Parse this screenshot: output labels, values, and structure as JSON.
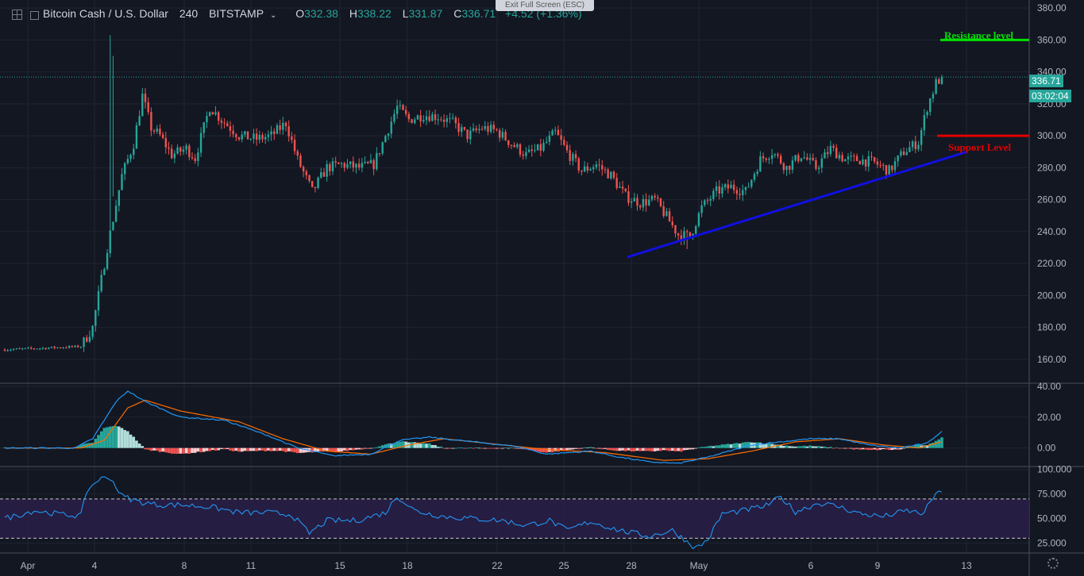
{
  "header": {
    "symbol": "Bitcoin Cash / U.S. Dollar",
    "interval": "240",
    "exchange": "BITSTAMP",
    "open_label": "O",
    "open": "332.38",
    "high_label": "H",
    "high": "338.22",
    "low_label": "L",
    "low": "331.87",
    "close_label": "C",
    "close": "336.71",
    "change": "+4.52 (+1.36%)"
  },
  "exit_fullscreen": "Exit Full Screen (ESC)",
  "price_tag": "336.71",
  "countdown": "03:02:04",
  "annotations": {
    "resistance": "Resistance level",
    "support": "Support Level"
  },
  "colors": {
    "background": "#131722",
    "up": "#26a69a",
    "down": "#ef5350",
    "resistance": "#00e000",
    "support": "#e00000",
    "trendline": "#1010e0",
    "macd": "#2196f3",
    "signal": "#ff6d00",
    "rsi": "#2196f3",
    "rsi_band": "#2a1e48"
  },
  "chart_data": [
    {
      "type": "candlestick",
      "title": "Bitcoin Cash / U.S. Dollar, 240, BITSTAMP",
      "xlabels": [
        "Apr",
        "4",
        "8",
        "11",
        "15",
        "18",
        "22",
        "25",
        "28",
        "May",
        "6",
        "9",
        "13"
      ],
      "ylim": [
        145,
        385
      ],
      "yticks": [
        160,
        180,
        200,
        220,
        240,
        260,
        280,
        300,
        320,
        340,
        360,
        380
      ],
      "close_anchors": [
        [
          0,
          166
        ],
        [
          26,
          168
        ],
        [
          30,
          180
        ],
        [
          35,
          230
        ],
        [
          40,
          275
        ],
        [
          44,
          295
        ],
        [
          47,
          325
        ],
        [
          50,
          305
        ],
        [
          53,
          300
        ],
        [
          57,
          288
        ],
        [
          62,
          292
        ],
        [
          65,
          286
        ],
        [
          70,
          318
        ],
        [
          74,
          310
        ],
        [
          80,
          300
        ],
        [
          86,
          298
        ],
        [
          91,
          300
        ],
        [
          96,
          308
        ],
        [
          100,
          285
        ],
        [
          105,
          265
        ],
        [
          110,
          280
        ],
        [
          115,
          282
        ],
        [
          121,
          280
        ],
        [
          126,
          282
        ],
        [
          130,
          300
        ],
        [
          134,
          318
        ],
        [
          138,
          310
        ],
        [
          143,
          313
        ],
        [
          148,
          312
        ],
        [
          153,
          308
        ],
        [
          158,
          300
        ],
        [
          163,
          305
        ],
        [
          168,
          303
        ],
        [
          173,
          295
        ],
        [
          178,
          288
        ],
        [
          183,
          292
        ],
        [
          188,
          302
        ],
        [
          192,
          290
        ],
        [
          197,
          278
        ],
        [
          202,
          282
        ],
        [
          207,
          275
        ],
        [
          212,
          262
        ],
        [
          217,
          258
        ],
        [
          222,
          260
        ],
        [
          225,
          252
        ],
        [
          230,
          238
        ],
        [
          234,
          237
        ],
        [
          238,
          255
        ],
        [
          243,
          265
        ],
        [
          248,
          268
        ],
        [
          253,
          265
        ],
        [
          258,
          285
        ],
        [
          262,
          290
        ],
        [
          267,
          280
        ],
        [
          272,
          288
        ],
        [
          277,
          280
        ],
        [
          282,
          292
        ],
        [
          287,
          285
        ],
        [
          292,
          285
        ],
        [
          297,
          283
        ],
        [
          302,
          278
        ],
        [
          307,
          290
        ],
        [
          312,
          296
        ],
        [
          315,
          318
        ],
        [
          318,
          333
        ],
        [
          320,
          336.71
        ]
      ],
      "last": {
        "open": 332.38,
        "high": 338.22,
        "low": 331.87,
        "close": 336.71
      }
    },
    {
      "type": "line",
      "title": "MACD",
      "ylim": [
        -12,
        42
      ],
      "yticks": [
        0,
        20,
        40
      ],
      "macd_anchors": [
        [
          0,
          0
        ],
        [
          24,
          0
        ],
        [
          30,
          6
        ],
        [
          38,
          30
        ],
        [
          42,
          37
        ],
        [
          48,
          30
        ],
        [
          60,
          20
        ],
        [
          75,
          18
        ],
        [
          90,
          8
        ],
        [
          100,
          0
        ],
        [
          112,
          -5
        ],
        [
          125,
          -4
        ],
        [
          135,
          5
        ],
        [
          145,
          7
        ],
        [
          160,
          4
        ],
        [
          175,
          1
        ],
        [
          185,
          -4
        ],
        [
          200,
          -2
        ],
        [
          210,
          -6
        ],
        [
          220,
          -9
        ],
        [
          230,
          -10
        ],
        [
          240,
          -6
        ],
        [
          255,
          2
        ],
        [
          265,
          4
        ],
        [
          275,
          6
        ],
        [
          285,
          6
        ],
        [
          295,
          2
        ],
        [
          305,
          0
        ],
        [
          315,
          3
        ],
        [
          320,
          11
        ]
      ],
      "signal_anchors": [
        [
          0,
          0
        ],
        [
          26,
          0
        ],
        [
          34,
          5
        ],
        [
          42,
          26
        ],
        [
          48,
          31
        ],
        [
          60,
          24
        ],
        [
          80,
          17
        ],
        [
          95,
          6
        ],
        [
          110,
          -2
        ],
        [
          125,
          -4
        ],
        [
          138,
          2
        ],
        [
          150,
          6
        ],
        [
          165,
          3
        ],
        [
          185,
          -1
        ],
        [
          205,
          -3
        ],
        [
          225,
          -8
        ],
        [
          240,
          -7
        ],
        [
          255,
          -2
        ],
        [
          270,
          4
        ],
        [
          285,
          6
        ],
        [
          300,
          2
        ],
        [
          312,
          0
        ],
        [
          320,
          4
        ]
      ]
    },
    {
      "type": "line",
      "title": "RSI",
      "ylim": [
        15,
        103
      ],
      "yticks": [
        25,
        50,
        75,
        100
      ],
      "bands": [
        30,
        70
      ],
      "rsi_anchors": [
        [
          0,
          50
        ],
        [
          10,
          58
        ],
        [
          20,
          54
        ],
        [
          26,
          53
        ],
        [
          28,
          78
        ],
        [
          32,
          90
        ],
        [
          36,
          92
        ],
        [
          40,
          73
        ],
        [
          46,
          67
        ],
        [
          52,
          64
        ],
        [
          60,
          64
        ],
        [
          70,
          62
        ],
        [
          80,
          56
        ],
        [
          90,
          56
        ],
        [
          98,
          54
        ],
        [
          104,
          35
        ],
        [
          110,
          48
        ],
        [
          120,
          48
        ],
        [
          130,
          56
        ],
        [
          134,
          73
        ],
        [
          140,
          58
        ],
        [
          150,
          52
        ],
        [
          160,
          50
        ],
        [
          170,
          48
        ],
        [
          178,
          43
        ],
        [
          186,
          48
        ],
        [
          192,
          38
        ],
        [
          200,
          47
        ],
        [
          210,
          38
        ],
        [
          220,
          32
        ],
        [
          228,
          38
        ],
        [
          236,
          20
        ],
        [
          240,
          28
        ],
        [
          245,
          55
        ],
        [
          252,
          58
        ],
        [
          260,
          63
        ],
        [
          265,
          72
        ],
        [
          270,
          57
        ],
        [
          278,
          66
        ],
        [
          285,
          62
        ],
        [
          292,
          55
        ],
        [
          300,
          52
        ],
        [
          308,
          58
        ],
        [
          314,
          55
        ],
        [
          316,
          68
        ],
        [
          320,
          79
        ]
      ]
    }
  ]
}
